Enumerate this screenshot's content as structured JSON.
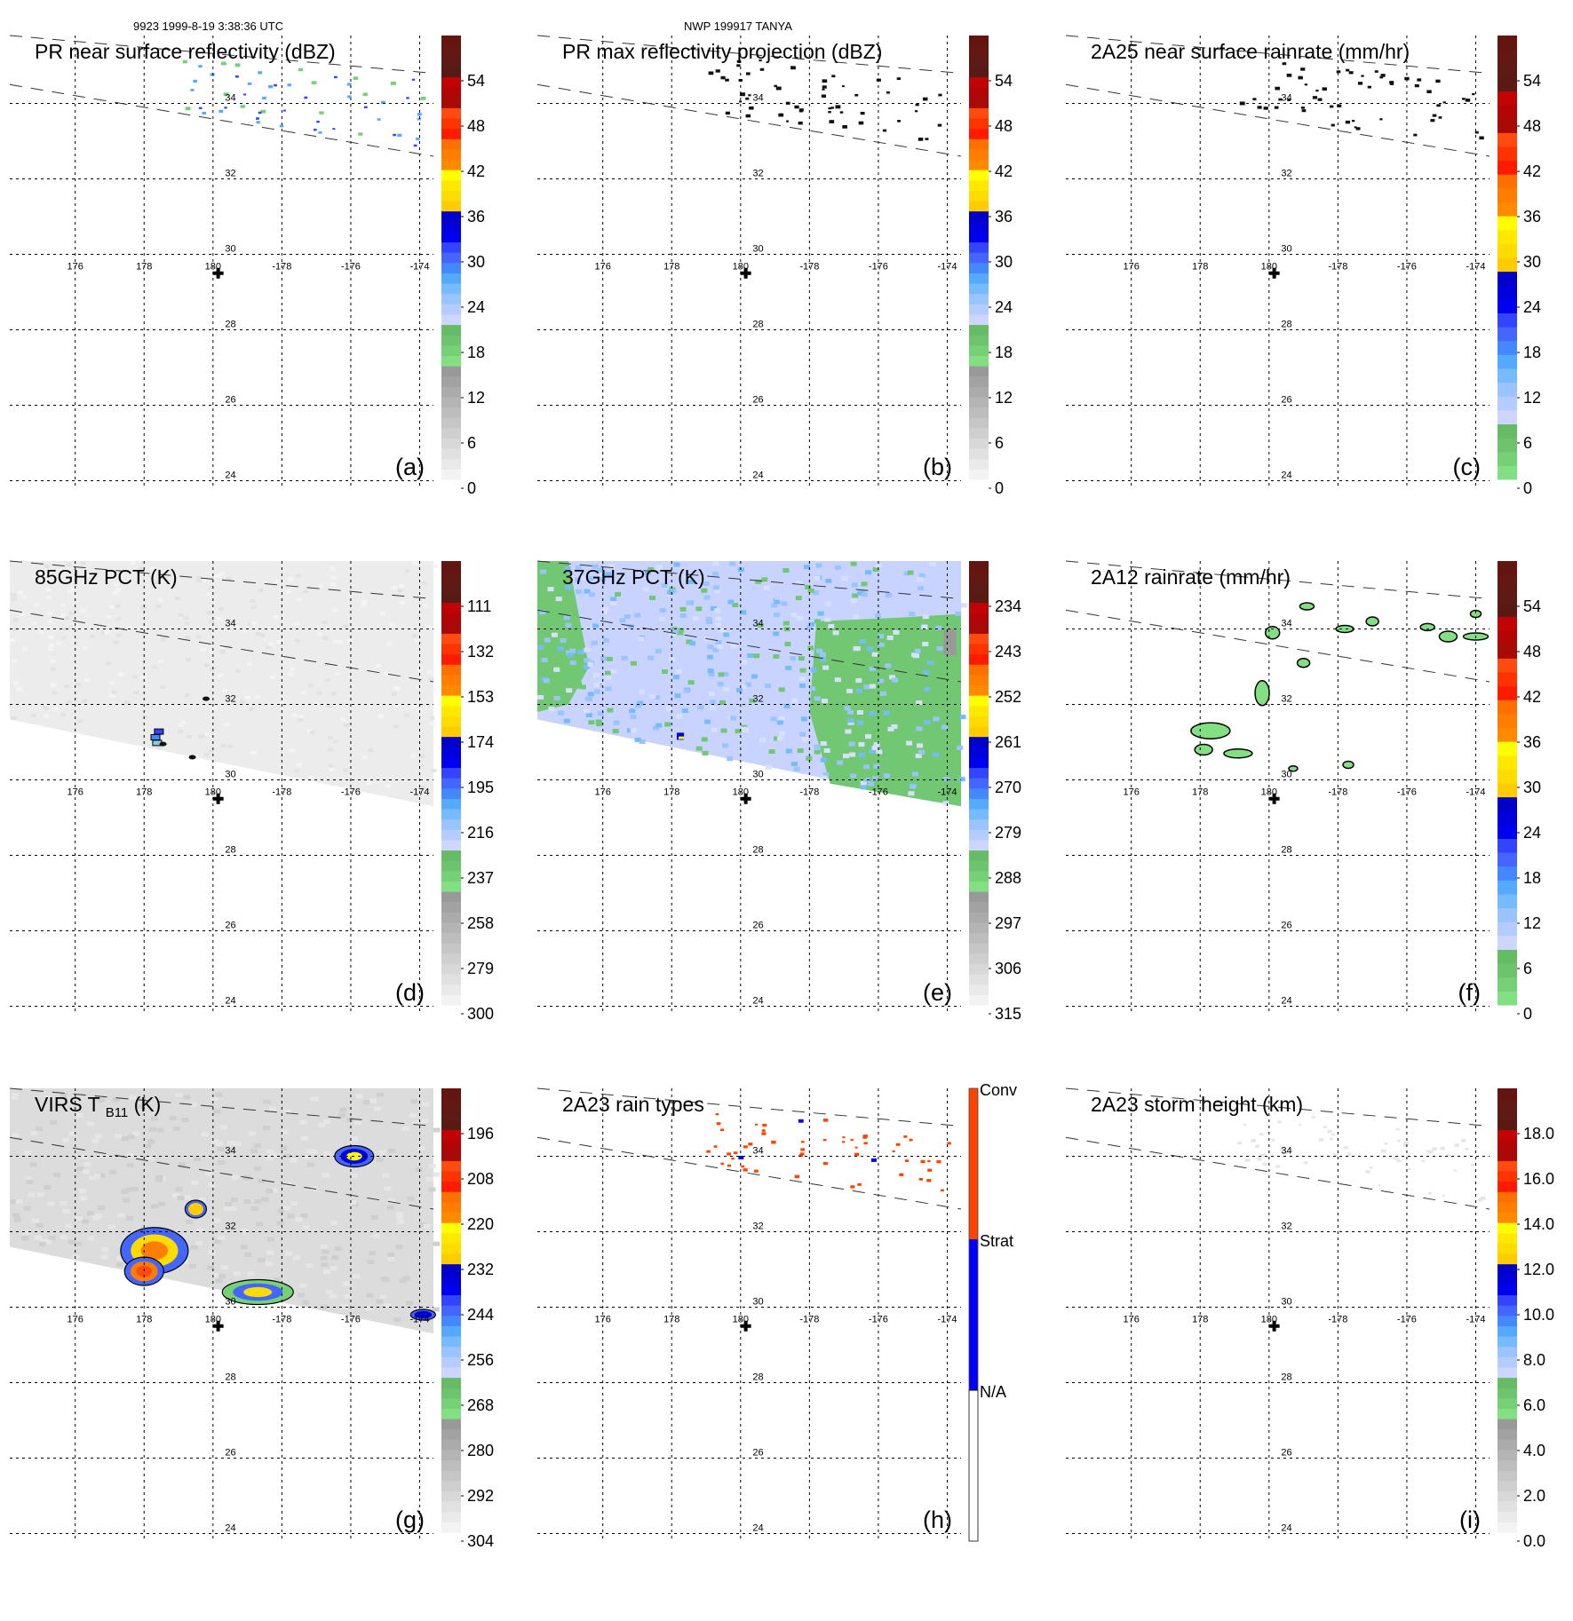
{
  "header": {
    "left": "9923 1999-8-19 3:38:36 UTC",
    "center": "NWP 199917 TANYA"
  },
  "map": {
    "lon_ticks": [
      "176",
      "178",
      "180",
      "-178",
      "-176",
      "-174"
    ],
    "lon_values": [
      176,
      178,
      180,
      182,
      184,
      186
    ],
    "lat_ticks": [
      "34",
      "32",
      "30",
      "28",
      "26",
      "24"
    ],
    "lat_values": [
      34,
      32,
      30,
      28,
      26,
      24
    ],
    "lon_range": [
      174.1,
      186.4
    ],
    "lat_range": [
      23.8,
      35.8
    ],
    "storm_center": {
      "lon": 180.15,
      "lat": 29.5,
      "marker": "plus"
    },
    "swath_edges": [
      {
        "lon": [
          174.1,
          186.4
        ],
        "lat": [
          35.8,
          34.8
        ]
      },
      {
        "lon": [
          174.1,
          186.4
        ],
        "lat": [
          34.5,
          32.6
        ]
      }
    ]
  },
  "colors": {
    "brown": [
      "#5a1a14",
      "#5e1a14",
      "#631812",
      "#651510"
    ],
    "darkred": [
      "#a80a08",
      "#b20505",
      "#c00404"
    ],
    "red": [
      "#ff1a00",
      "#ff3300",
      "#ff4a10"
    ],
    "orange": [
      "#ff7000",
      "#ff7e00",
      "#ff8a00"
    ],
    "yellow": [
      "#ffcc00",
      "#ffdc00",
      "#ffe800",
      "#ffff00"
    ],
    "blue": [
      "#0000c8",
      "#0000dc",
      "#0000f0",
      "#3344ff",
      "#4466ff",
      "#4488ff"
    ],
    "lightblue": [
      "#55aaff",
      "#77bbff",
      "#99c4ff",
      "#b4ccff",
      "#ccd6ff"
    ],
    "green": [
      "#66bb66",
      "#6ec46e",
      "#76d076",
      "#82e082"
    ],
    "gray": [
      "#999999",
      "#a2a2a2",
      "#ababab",
      "#b4b4b4",
      "#bdbdbd",
      "#c6c6c6",
      "#cfcfcf",
      "#d8d8d8",
      "#e1e1e1",
      "#eaeaea",
      "#f3f3f3"
    ],
    "conv": "#ff4400",
    "strat": "#0000ff",
    "na": "#ffffff"
  },
  "chart_data": [
    {
      "id": "a",
      "type": "heatmap",
      "title": "PR near surface reflectivity (dBZ)",
      "panel_label": "(a)",
      "colorbar": {
        "ticks": [
          "0",
          "6",
          "12",
          "18",
          "24",
          "30",
          "36",
          "42",
          "48",
          "54"
        ],
        "range": [
          0,
          60
        ],
        "scheme": "gray-green-blue-yellow-red"
      },
      "background": "none",
      "features": "sparse light-blue/blue pixels along the PR swath near 33-35N, 179E to -175W"
    },
    {
      "id": "b",
      "type": "heatmap",
      "title": "PR max reflectivity projection (dBZ)",
      "panel_label": "(b)",
      "colorbar": {
        "ticks": [
          "0",
          "6",
          "12",
          "18",
          "24",
          "30",
          "36",
          "42",
          "48",
          "54"
        ],
        "range": [
          0,
          60
        ],
        "scheme": "gray-green-blue-yellow-red"
      },
      "background": "none",
      "features": "sparse dark (black) cells along the PR swath near 33-35N"
    },
    {
      "id": "c",
      "type": "heatmap",
      "title": "2A25 near surface rainrate (mm/hr)",
      "panel_label": "(c)",
      "colorbar": {
        "ticks": [
          "0",
          "6",
          "12",
          "18",
          "24",
          "30",
          "36",
          "42",
          "48",
          "54"
        ],
        "range": [
          0,
          60
        ],
        "scheme": "green-blue-yellow-red"
      },
      "background": "none",
      "features": "sparse dark cells along the PR swath near 33-35N"
    },
    {
      "id": "d",
      "type": "heatmap",
      "title": "85GHz PCT (K)",
      "panel_label": "(d)",
      "colorbar": {
        "ticks": [
          "300",
          "279",
          "258",
          "237",
          "216",
          "195",
          "174",
          "153",
          "132",
          "111"
        ],
        "range": [
          300,
          90
        ],
        "scheme": "gray-green-blue-yellow-red"
      },
      "background": "light-gray swath",
      "features": "small cold (blue) cell near 178.2E, 31.2N"
    },
    {
      "id": "e",
      "type": "heatmap",
      "title": "37GHz PCT (K)",
      "panel_label": "(e)",
      "colorbar": {
        "ticks": [
          "315",
          "306",
          "297",
          "288",
          "279",
          "270",
          "261",
          "252",
          "243",
          "234"
        ],
        "range": [
          315,
          225
        ],
        "scheme": "gray-green-blue-yellow-red"
      },
      "background": "light-blue swath with green regions to west and east",
      "features": "small yellow/blue warm cell near 178.2E, 31.1N"
    },
    {
      "id": "f",
      "type": "heatmap",
      "title": "2A12 rainrate (mm/hr)",
      "panel_label": "(f)",
      "colorbar": {
        "ticks": [
          "0",
          "6",
          "12",
          "18",
          "24",
          "30",
          "36",
          "42",
          "48",
          "54"
        ],
        "range": [
          0,
          60
        ],
        "scheme": "green-blue-yellow-red"
      },
      "background": "none",
      "features": "green contoured rain cells scattered 30-35N"
    },
    {
      "id": "g",
      "type": "heatmap",
      "title": "VIRS T",
      "title_sub": "B11",
      "title_suffix": " (K)",
      "panel_label": "(g)",
      "colorbar": {
        "ticks": [
          "304",
          "292",
          "280",
          "268",
          "256",
          "244",
          "232",
          "220",
          "208",
          "196"
        ],
        "range": [
          304,
          184
        ],
        "scheme": "gray-green-blue-yellow-red"
      },
      "background": "gray cloud-field swath",
      "features": "cold cloud tops (blue/yellow/orange/red) near 178E 31N, 181E 30.5N, and -176W 34N"
    },
    {
      "id": "h",
      "type": "heatmap",
      "title": "2A23 rain types",
      "panel_label": "(h)",
      "colorbar": {
        "categories": [
          "Conv",
          "Strat",
          "N/A"
        ],
        "colors": [
          "#ff4400",
          "#0000ff",
          "#ffffff"
        ]
      },
      "background": "none",
      "features": "mostly convective (orange-red) pixels with few stratiform (blue) along PR swath"
    },
    {
      "id": "i",
      "type": "heatmap",
      "title": "2A23 storm height (km)",
      "panel_label": "(i)",
      "colorbar": {
        "ticks": [
          "0.0",
          "2.0",
          "4.0",
          "6.0",
          "8.0",
          "10.0",
          "12.0",
          "14.0",
          "16.0",
          "18.0"
        ],
        "range": [
          0,
          20
        ],
        "scheme": "gray-green-blue-yellow-red"
      },
      "background": "none",
      "features": "faint light-gray pixels along PR swath"
    }
  ]
}
